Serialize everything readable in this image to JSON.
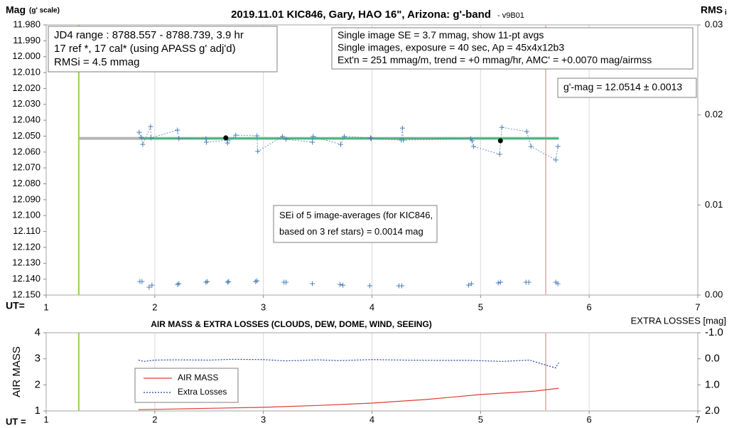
{
  "chart_data": [
    {
      "type": "scatter",
      "title": "2019.11.01 KIC846, Gary, HAO 16\", Arizona: g'-band",
      "subtitle": "- v9B01",
      "y_label": "Mag",
      "y_label_sub": "(g' scale)",
      "y2_label": "RMS",
      "y2_label_sub": "i",
      "x_label": "UT=",
      "xlim": [
        1,
        7
      ],
      "xticks": [
        1,
        2,
        3,
        4,
        5,
        6,
        7
      ],
      "ylim": [
        11.98,
        12.15
      ],
      "y_inverted": true,
      "yticks": [
        {
          "value": 11.98,
          "label": "11.980"
        },
        {
          "value": 11.99,
          "label": "11.990"
        },
        {
          "value": 12.0,
          "label": "12.000"
        },
        {
          "value": 12.01,
          "label": "12.010"
        },
        {
          "value": 12.02,
          "label": "12.020"
        },
        {
          "value": 12.03,
          "label": "12.030"
        },
        {
          "value": 12.04,
          "label": "12.040"
        },
        {
          "value": 12.05,
          "label": "12.050"
        },
        {
          "value": 12.06,
          "label": "12.060"
        },
        {
          "value": 12.07,
          "label": "12.070"
        },
        {
          "value": 12.08,
          "label": "12.080"
        },
        {
          "value": 12.09,
          "label": "12.090"
        },
        {
          "value": 12.1,
          "label": "12.100"
        },
        {
          "value": 12.11,
          "label": "12.110"
        },
        {
          "value": 12.12,
          "label": "12.120"
        },
        {
          "value": 12.13,
          "label": "12.130"
        },
        {
          "value": 12.14,
          "label": "12.140"
        },
        {
          "value": 12.15,
          "label": "12.150"
        }
      ],
      "y2lim": [
        0,
        0.03
      ],
      "y2ticks": [
        {
          "value": 0,
          "label": "0.00"
        },
        {
          "value": 0.01,
          "label": "0.01"
        },
        {
          "value": 0.02,
          "label": "0.02"
        },
        {
          "value": 0.03,
          "label": "0.03"
        }
      ],
      "grid": "x",
      "vlines": [
        {
          "x": 1.3,
          "color": "#92d050"
        },
        {
          "x": 5.6,
          "color": "#f4b6b6"
        }
      ],
      "annotations": [
        [
          "JD4 range : 8788.557 - 8788.739,  3.9  hr",
          "17 ref *, 17 cal* (using APASS g' adj'd)",
          "RMSi = 4.5 mmag"
        ],
        [
          "Single image SE = 3.7 mmag, show  11-pt avgs",
          "Single images, exposure = 40 sec, Ap = 45x4x12b3",
          "Ext'n = 251 mmag/m, trend =  +0 mmag/hr, AMC' = +0.0070 mag/airmss"
        ],
        [
          "g'-mag = 12.0514 ± 0.0013"
        ],
        [
          "SEi of 5 image-averages (for KIC846,",
          "based on 3 ref stars) = 0.0014 mag"
        ]
      ],
      "series": [
        {
          "style": "thick-line",
          "color": "#b4b4b4",
          "x": [
            1.3,
            5.72
          ],
          "values": [
            12.0514,
            12.0514
          ]
        },
        {
          "style": "line",
          "color": "#3cb371",
          "x": [
            1.86,
            5.72
          ],
          "values": [
            12.0514,
            12.0514
          ]
        },
        {
          "style": "cross-dashed",
          "color": "#4a7fb5",
          "x": [
            1.856,
            1.876,
            1.889,
            1.961,
            1.965,
            2.209,
            2.222,
            2.471,
            2.475,
            2.667,
            2.67,
            2.745,
            2.941,
            2.948,
            3.176,
            3.209,
            3.451,
            3.458,
            3.712,
            3.745,
            3.987,
            3.993,
            4.268,
            4.281,
            4.288,
            4.908,
            4.922,
            4.935,
            5.176,
            5.196,
            5.425,
            5.464,
            5.693,
            5.712
          ],
          "values": [
            12.0476,
            12.0507,
            12.0552,
            12.044,
            12.0511,
            12.0462,
            12.0516,
            12.0516,
            12.0538,
            12.0525,
            12.0543,
            12.0494,
            12.0498,
            12.0596,
            12.0502,
            12.052,
            12.0538,
            12.0502,
            12.0552,
            12.0502,
            12.0511,
            12.0516,
            12.0525,
            12.0449,
            12.0525,
            12.0516,
            12.0529,
            12.0565,
            12.0614,
            12.0445,
            12.0471,
            12.0565,
            12.065,
            12.0565
          ]
        },
        {
          "style": "dot",
          "color": "#000000",
          "x": [
            2.654,
            5.183
          ],
          "values": [
            12.0511,
            12.0529
          ]
        },
        {
          "style": "cross",
          "color": "#4a7fb5",
          "axis": "y2",
          "x": [
            1.863,
            1.882,
            1.948,
            1.974,
            2.209,
            2.222,
            2.471,
            2.484,
            2.67,
            2.68,
            2.928,
            2.941,
            3.19,
            3.209,
            3.451,
            3.706,
            3.732,
            3.98,
            4.248,
            4.275,
            4.889,
            4.915,
            5.163,
            5.183,
            5.418,
            5.444,
            5.693,
            5.712
          ],
          "values": [
            0.0015,
            0.0015,
            0.00087,
            0.0011,
            0.00118,
            0.00126,
            0.00142,
            0.0015,
            0.00142,
            0.0015,
            0.0015,
            0.00158,
            0.00142,
            0.00142,
            0.00126,
            0.00118,
            0.0011,
            0.00103,
            0.00103,
            0.00103,
            0.0011,
            0.00126,
            0.00134,
            0.00142,
            0.00142,
            0.00142,
            0.00142,
            0.00126
          ]
        }
      ]
    },
    {
      "type": "line",
      "title": "AIR MASS & EXTRA LOSSES (CLOUDS, DEW, DOME, WIND, SEEING)",
      "y_label": "AIR MASS",
      "y2_label": "EXTRA LOSSES [mag]",
      "x_label": "UT =",
      "xlim": [
        1,
        7
      ],
      "xticks": [
        1,
        2,
        3,
        4,
        5,
        6,
        7
      ],
      "ylim": [
        1,
        4
      ],
      "yticks": [
        1,
        2,
        3,
        4
      ],
      "y2lim": [
        -1,
        2
      ],
      "y2_inverted": true,
      "y2ticks": [
        {
          "value": -1,
          "label": "-1.0"
        },
        {
          "value": 0,
          "label": "0.0"
        },
        {
          "value": 1,
          "label": "1.0"
        },
        {
          "value": 2,
          "label": "2.0"
        }
      ],
      "grid": "x",
      "vlines": [
        {
          "x": 1.3,
          "color": "#92d050"
        },
        {
          "x": 5.6,
          "color": "#f4b6b6"
        }
      ],
      "legend": "lower-left",
      "series": [
        {
          "name": "AIR MASS",
          "color": "#e03c31",
          "style": "line",
          "x": [
            1.85,
            2.0,
            2.5,
            3.0,
            3.5,
            4.0,
            4.5,
            5.0,
            5.5,
            5.72
          ],
          "values": [
            1.05,
            1.06,
            1.1,
            1.14,
            1.21,
            1.3,
            1.44,
            1.63,
            1.76,
            1.87
          ]
        },
        {
          "name": "Extra Losses",
          "color": "#1f3c99",
          "style": "dashed",
          "axis": "y2",
          "x": [
            1.85,
            1.9,
            2.0,
            2.2,
            2.5,
            2.7,
            3.0,
            3.2,
            3.5,
            3.7,
            4.0,
            4.3,
            4.6,
            4.9,
            5.2,
            5.45,
            5.69,
            5.72
          ],
          "values": [
            0.05,
            0.1,
            0.05,
            0.04,
            0.05,
            0.02,
            0.03,
            0.08,
            0.04,
            0.07,
            0.03,
            0.05,
            0.06,
            0.06,
            0.1,
            0.05,
            0.35,
            0.15
          ]
        }
      ]
    }
  ]
}
